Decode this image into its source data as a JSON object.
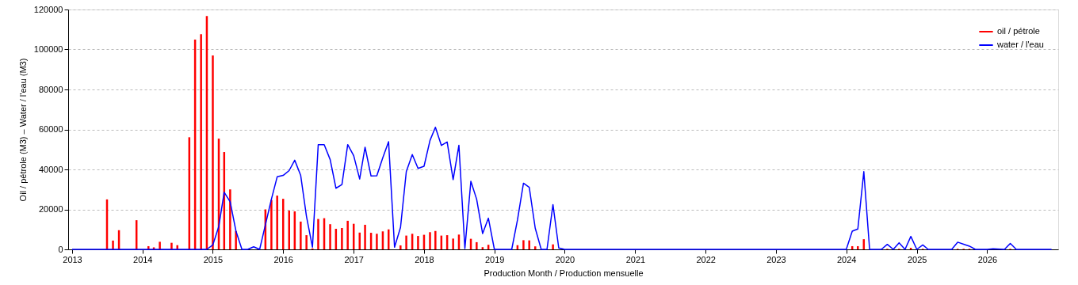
{
  "chart_data": {
    "type": "bar",
    "xlabel": "Production Month / Production mensuelle",
    "ylabel": "Oil / pétrole (M3)  –  Water / l'eau (M3)",
    "xlim": [
      "2013-01",
      "2026-12-15"
    ],
    "xticks": [
      "2013",
      "2014",
      "2015",
      "2016",
      "2017",
      "2018",
      "2019",
      "2020",
      "2021",
      "2022",
      "2023",
      "2024",
      "2025",
      "2026"
    ],
    "ylim": [
      0,
      120000
    ],
    "yticks": [
      0,
      20000,
      40000,
      60000,
      80000,
      100000,
      120000
    ],
    "grid": "y",
    "legend": "top right",
    "series": [
      {
        "name": "oil / pétrole",
        "color": "#ff0000",
        "x": [
          "2013-07",
          "2013-08",
          "2013-09",
          "2013-12",
          "2014-02",
          "2014-03",
          "2014-04",
          "2014-06",
          "2014-07",
          "2014-09",
          "2014-10",
          "2014-11",
          "2014-12",
          "2015-01",
          "2015-02",
          "2015-03",
          "2015-04",
          "2015-05",
          "2015-10",
          "2015-11",
          "2015-12",
          "2016-01",
          "2016-02",
          "2016-03",
          "2016-04",
          "2016-05",
          "2016-06",
          "2016-07",
          "2016-08",
          "2016-09",
          "2016-10",
          "2016-11",
          "2016-12",
          "2017-01",
          "2017-02",
          "2017-03",
          "2017-04",
          "2017-05",
          "2017-06",
          "2017-07",
          "2017-09",
          "2017-10",
          "2017-11",
          "2017-12",
          "2018-01",
          "2018-02",
          "2018-03",
          "2018-04",
          "2018-05",
          "2018-06",
          "2018-07",
          "2018-09",
          "2018-10",
          "2018-11",
          "2018-12",
          "2019-05",
          "2019-06",
          "2019-07",
          "2019-08",
          "2019-11",
          "2024-02",
          "2024-03",
          "2024-04",
          "2024-08",
          "2024-10",
          "2024-12",
          "2025-02",
          "2025-08",
          "2025-09",
          "2025-10",
          "2026-05"
        ],
        "values": [
          25000,
          4400,
          9600,
          14600,
          1600,
          1000,
          3800,
          3300,
          2100,
          56100,
          105000,
          107600,
          116700,
          97000,
          55400,
          48700,
          30000,
          9200,
          20000,
          24700,
          26900,
          25300,
          19400,
          19000,
          13900,
          7100,
          500,
          15200,
          15600,
          12600,
          10300,
          10700,
          14300,
          12800,
          8400,
          12300,
          8300,
          7800,
          9000,
          10000,
          2000,
          6900,
          7800,
          6700,
          7300,
          8600,
          9200,
          6900,
          7100,
          5400,
          7400,
          5300,
          3600,
          1100,
          2300,
          2100,
          4600,
          4500,
          1500,
          2500,
          1600,
          1600,
          5100,
          300,
          300,
          800,
          300,
          300,
          300,
          300,
          300
        ]
      },
      {
        "name": "water / l'eau",
        "type": "line",
        "color": "#0000ff",
        "x": [
          "2013-01",
          "2014-12",
          "2015-01",
          "2015-02",
          "2015-03",
          "2015-04",
          "2015-05",
          "2015-06",
          "2015-07",
          "2015-08",
          "2015-09",
          "2015-10",
          "2015-11",
          "2015-12",
          "2016-01",
          "2016-02",
          "2016-03",
          "2016-04",
          "2016-05",
          "2016-06",
          "2016-07",
          "2016-08",
          "2016-09",
          "2016-10",
          "2016-11",
          "2016-12",
          "2017-01",
          "2017-02",
          "2017-03",
          "2017-04",
          "2017-05",
          "2017-06",
          "2017-07",
          "2017-08",
          "2017-09",
          "2017-10",
          "2017-11",
          "2017-12",
          "2018-01",
          "2018-02",
          "2018-03",
          "2018-04",
          "2018-05",
          "2018-06",
          "2018-07",
          "2018-08",
          "2018-09",
          "2018-10",
          "2018-11",
          "2018-12",
          "2019-01",
          "2019-04",
          "2019-05",
          "2019-06",
          "2019-07",
          "2019-08",
          "2019-09",
          "2019-10",
          "2019-11",
          "2019-12",
          "2020-01",
          "2024-01",
          "2024-02",
          "2024-03",
          "2024-04",
          "2024-05",
          "2024-07",
          "2024-08",
          "2024-09",
          "2024-10",
          "2024-11",
          "2024-12",
          "2025-01",
          "2025-02",
          "2025-03",
          "2025-07",
          "2025-08",
          "2025-09",
          "2025-10",
          "2025-11",
          "2026-01",
          "2026-02",
          "2026-04",
          "2026-05",
          "2026-06",
          "2026-12"
        ],
        "values": [
          0,
          0,
          2200,
          11500,
          28600,
          23800,
          9200,
          0,
          0,
          1300,
          0,
          12300,
          25100,
          36300,
          37000,
          39400,
          44600,
          37000,
          16500,
          1100,
          52400,
          52400,
          44900,
          30600,
          32400,
          52400,
          46900,
          35200,
          51100,
          36700,
          36800,
          45800,
          53900,
          1100,
          11000,
          38900,
          47400,
          40500,
          41600,
          54500,
          61100,
          52000,
          53700,
          34900,
          52100,
          400,
          34100,
          25100,
          7900,
          15600,
          0,
          0,
          14800,
          33100,
          31000,
          10600,
          0,
          0,
          22400,
          700,
          0,
          0,
          9100,
          10200,
          38900,
          0,
          0,
          2500,
          0,
          3300,
          0,
          6500,
          0,
          2200,
          0,
          0,
          3600,
          2600,
          1600,
          0,
          0,
          300,
          0,
          3000,
          0,
          0
        ]
      }
    ]
  }
}
